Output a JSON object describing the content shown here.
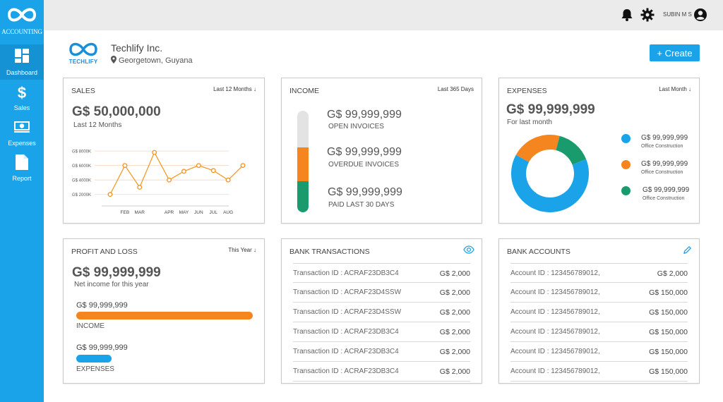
{
  "sidebar": {
    "logo_text": "ACCOUNTING",
    "items": [
      {
        "label": "Dashboard",
        "icon": "dashboard-icon",
        "active": true
      },
      {
        "label": "Sales",
        "icon": "dollar-icon",
        "active": false
      },
      {
        "label": "Expenses",
        "icon": "banknote-icon",
        "active": false
      },
      {
        "label": "Report",
        "icon": "document-icon",
        "active": false
      }
    ]
  },
  "topbar": {
    "user_name": "SUBIN M S"
  },
  "company": {
    "logo_text": "TECHLIFY",
    "name": "Techlify Inc.",
    "location": "Georgetown, Guyana",
    "create_label": "+ Create"
  },
  "sales": {
    "title": "SALES",
    "filter": "Last 12 Months",
    "amount": "G$ 50,000,000",
    "subtitle": "Last 12 Months"
  },
  "chart_data": {
    "type": "line",
    "title": "",
    "categories": [
      "",
      "FEB",
      "MAR",
      "",
      "APR",
      "MAY",
      "JUN",
      "JUL",
      "AUG",
      ""
    ],
    "values": [
      2000,
      6000,
      3000,
      7800,
      4000,
      5200,
      6000,
      5300,
      4000,
      6000
    ],
    "y_ticks": [
      "G$ 2000K",
      "G$ 4000K",
      "G$ 6000K",
      "G$ 8000K"
    ],
    "ylim": [
      1000,
      8500
    ],
    "grid": true,
    "color": "#f7931e"
  },
  "income": {
    "title": "INCOME",
    "filter": "Last 365 Days",
    "rows": [
      {
        "amount": "G$ 99,999,999",
        "label": "OPEN INVOICES"
      },
      {
        "amount": "G$ 99,999,999",
        "label": "OVERDUE INVOICES"
      },
      {
        "amount": "G$ 99,999,999",
        "label": "PAID LAST 30 DAYS"
      }
    ],
    "bar_colors": [
      "#e3e3e3",
      "#f5851f",
      "#1a9b6e"
    ]
  },
  "expenses": {
    "title": "EXPENSES",
    "filter": "Last Month",
    "amount": "G$ 99,999,999",
    "subtitle": "For last month",
    "donut": [
      {
        "fraction": 0.64,
        "color": "#1aa3e8"
      },
      {
        "fraction": 0.21,
        "color": "#f5851f"
      },
      {
        "fraction": 0.15,
        "color": "#1a9b6e"
      }
    ],
    "legend": [
      {
        "amount": "G$ 99,999,999",
        "label": "Office Construction",
        "color": "#1aa3e8"
      },
      {
        "amount": "G$ 99,999,999",
        "label": "Office Construction",
        "color": "#f5851f"
      },
      {
        "amount": "G$ 99,999,999",
        "label": "Office Construction",
        "color": "#1a9b6e"
      }
    ]
  },
  "profit_loss": {
    "title": "PROFIT AND LOSS",
    "filter": "This Year",
    "amount": "G$ 99,999,999",
    "subtitle": "Net income for this year",
    "income_amount": "G$ 99,999,999",
    "income_label": "INCOME",
    "income_fraction": 1.0,
    "income_color": "#f5851f",
    "expenses_amount": "G$ 99,999,999",
    "expenses_label": "EXPENSES",
    "expenses_fraction": 0.2,
    "expenses_color": "#1aa3e8"
  },
  "bank_transactions": {
    "title": "BANK TRANSACTIONS",
    "rows": [
      {
        "id": "Transaction ID : ACRAF23DB3C4",
        "amount": "G$ 2,000"
      },
      {
        "id": "Transaction ID : ACRAF23D4SSW",
        "amount": "G$ 2,000"
      },
      {
        "id": "Transaction ID : ACRAF23D4SSW",
        "amount": "G$ 2,000"
      },
      {
        "id": "Transaction ID : ACRAF23DB3C4",
        "amount": "G$ 2,000"
      },
      {
        "id": "Transaction ID : ACRAF23DB3C4",
        "amount": "G$ 2,000"
      },
      {
        "id": "Transaction ID : ACRAF23DB3C4",
        "amount": "G$ 2,000"
      }
    ]
  },
  "bank_accounts": {
    "title": "BANK ACCOUNTS",
    "rows": [
      {
        "id": "Account ID : 123456789012,",
        "amount": "G$ 2,000"
      },
      {
        "id": "Account ID : 123456789012,",
        "amount": "G$ 150,000"
      },
      {
        "id": "Account ID : 123456789012,",
        "amount": "G$ 150,000"
      },
      {
        "id": "Account ID : 123456789012,",
        "amount": "G$ 150,000"
      },
      {
        "id": "Account ID : 123456789012,",
        "amount": "G$ 150,000"
      },
      {
        "id": "Account ID : 123456789012,",
        "amount": "G$ 150,000"
      }
    ]
  }
}
